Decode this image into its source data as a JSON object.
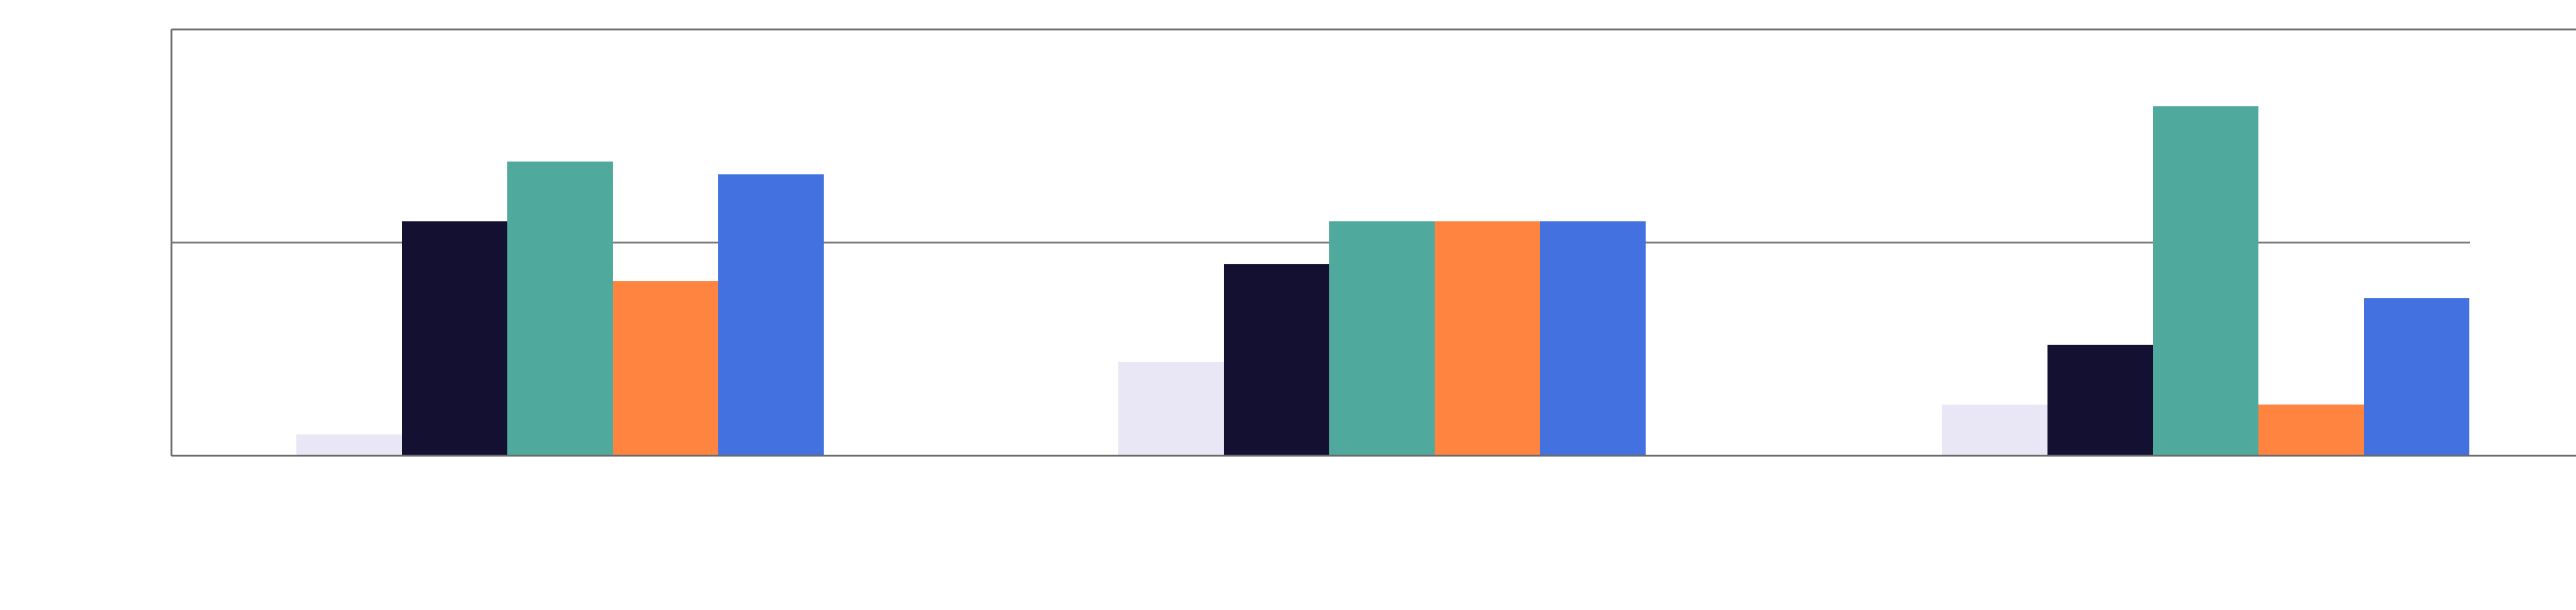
{
  "chart_data": {
    "type": "bar",
    "title": "",
    "xlabel": "",
    "ylabel": "",
    "categories": [
      "",
      "",
      ""
    ],
    "ylim": [
      0,
      100
    ],
    "grid": false,
    "reference_line": 50,
    "series": [
      {
        "color": "#e9e7f5",
        "values": [
          5,
          22,
          12
        ]
      },
      {
        "color": "#141031",
        "values": [
          55,
          45,
          26
        ]
      },
      {
        "color": "#4fa99c",
        "values": [
          69,
          55,
          82
        ]
      },
      {
        "color": "#fe843f",
        "values": [
          41,
          55,
          12
        ]
      },
      {
        "color": "#4372e0",
        "values": [
          66,
          55,
          37
        ]
      }
    ]
  }
}
